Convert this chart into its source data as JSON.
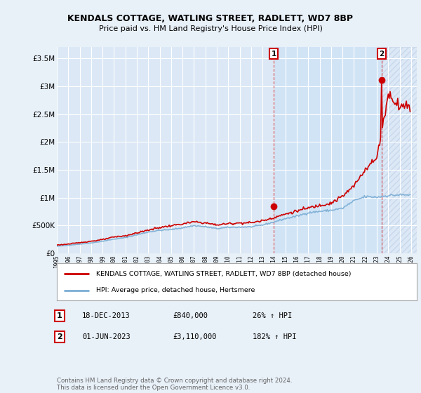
{
  "title": "KENDALS COTTAGE, WATLING STREET, RADLETT, WD7 8BP",
  "subtitle": "Price paid vs. HM Land Registry's House Price Index (HPI)",
  "legend_label1": "KENDALS COTTAGE, WATLING STREET, RADLETT, WD7 8BP (detached house)",
  "legend_label2": "HPI: Average price, detached house, Hertsmere",
  "annotation1_label": "1",
  "annotation1_date": "18-DEC-2013",
  "annotation1_price": "£840,000",
  "annotation1_pct": "26% ↑ HPI",
  "annotation2_label": "2",
  "annotation2_date": "01-JUN-2023",
  "annotation2_price": "£3,110,000",
  "annotation2_pct": "182% ↑ HPI",
  "footer": "Contains HM Land Registry data © Crown copyright and database right 2024.\nThis data is licensed under the Open Government Licence v3.0.",
  "ylim": [
    0,
    3700000
  ],
  "yticks": [
    0,
    500000,
    1000000,
    1500000,
    2000000,
    2500000,
    3000000,
    3500000
  ],
  "ytick_labels": [
    "£0",
    "£500K",
    "£1M",
    "£1.5M",
    "£2M",
    "£2.5M",
    "£3M",
    "£3.5M"
  ],
  "xlim_start": 1995.0,
  "xlim_end": 2026.5,
  "background_color": "#e8f0f8",
  "plot_bg_color": "#dce8f5",
  "highlight_bg_color": "#d0e4f7",
  "hatch_color": "#c8d8ec",
  "grid_color": "#ffffff",
  "red_color": "#cc0000",
  "blue_color": "#7aadd4",
  "marker1_x": 2013.97,
  "marker1_y": 840000,
  "marker2_x": 2023.42,
  "marker2_y": 3110000,
  "shade_start": 2013.97,
  "shade_end": 2023.42,
  "hatch_start": 2023.42,
  "hatch_end": 2026.5
}
